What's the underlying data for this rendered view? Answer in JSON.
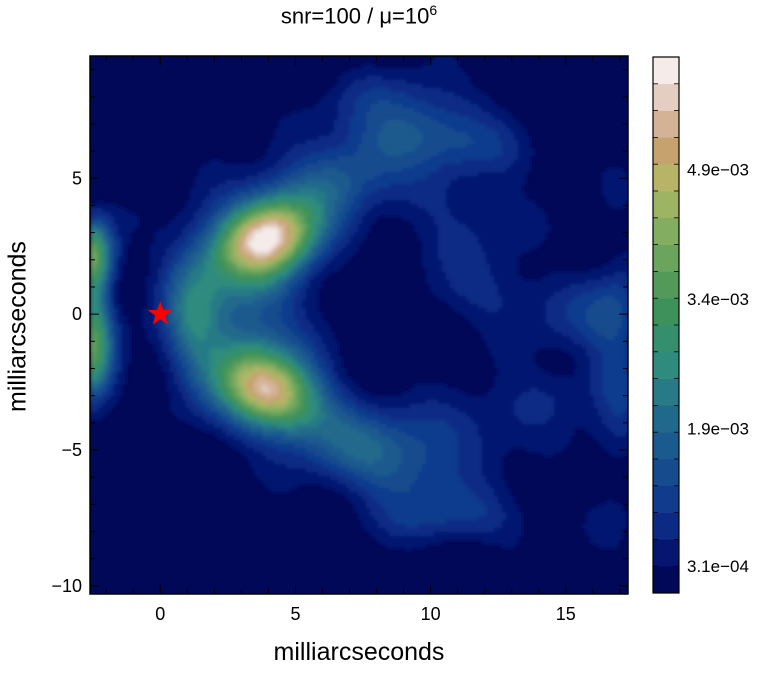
{
  "chart_data": {
    "type": "heatmap",
    "title": {
      "prefix": "snr=100 / μ=10",
      "exponent": "6"
    },
    "xlabel": "milliarcseconds",
    "ylabel": "milliarcseconds",
    "xlim": [
      -2.6,
      17.3
    ],
    "ylim": [
      -10.3,
      9.5
    ],
    "x_ticks": [
      {
        "value": 0,
        "label": "0"
      },
      {
        "value": 5,
        "label": "5"
      },
      {
        "value": 10,
        "label": "10"
      },
      {
        "value": 15,
        "label": "15"
      }
    ],
    "y_ticks": [
      {
        "value": -10,
        "label": "−10"
      },
      {
        "value": -5,
        "label": "−5"
      },
      {
        "value": 0,
        "label": "0"
      },
      {
        "value": 5,
        "label": "5"
      }
    ],
    "colorbar": {
      "range": [
        0.0,
        0.0062
      ],
      "levels": 20,
      "tick_labels": [
        {
          "value": 0.00031,
          "label": "3.1e−04"
        },
        {
          "value": 0.0019,
          "label": "1.9e−03"
        },
        {
          "value": 0.0034,
          "label": "3.4e−03"
        },
        {
          "value": 0.0049,
          "label": "4.9e−03"
        }
      ],
      "colors": [
        "#000857",
        "#061670",
        "#0c2a84",
        "#113b8d",
        "#164b8e",
        "#1b5a8e",
        "#21698c",
        "#277a86",
        "#2e8b7e",
        "#368f6c",
        "#3d9259",
        "#539a5a",
        "#6ba55d",
        "#83ad60",
        "#9eb465",
        "#b7b468",
        "#c6a36e",
        "#d4b296",
        "#e4cdc1",
        "#f5ecea"
      ]
    },
    "marker": {
      "label": "source position",
      "x": 0,
      "y": 0,
      "shape": "star",
      "color": "#ff0000"
    },
    "features": [
      {
        "x": 4.0,
        "y": 2.8,
        "peak": 0.0062
      },
      {
        "x": 4.0,
        "y": -2.8,
        "peak": 0.0057
      },
      {
        "x": -2.6,
        "y": 2.2,
        "peak": 0.0034
      },
      {
        "x": -2.6,
        "y": -1.5,
        "peak": 0.003
      }
    ]
  }
}
